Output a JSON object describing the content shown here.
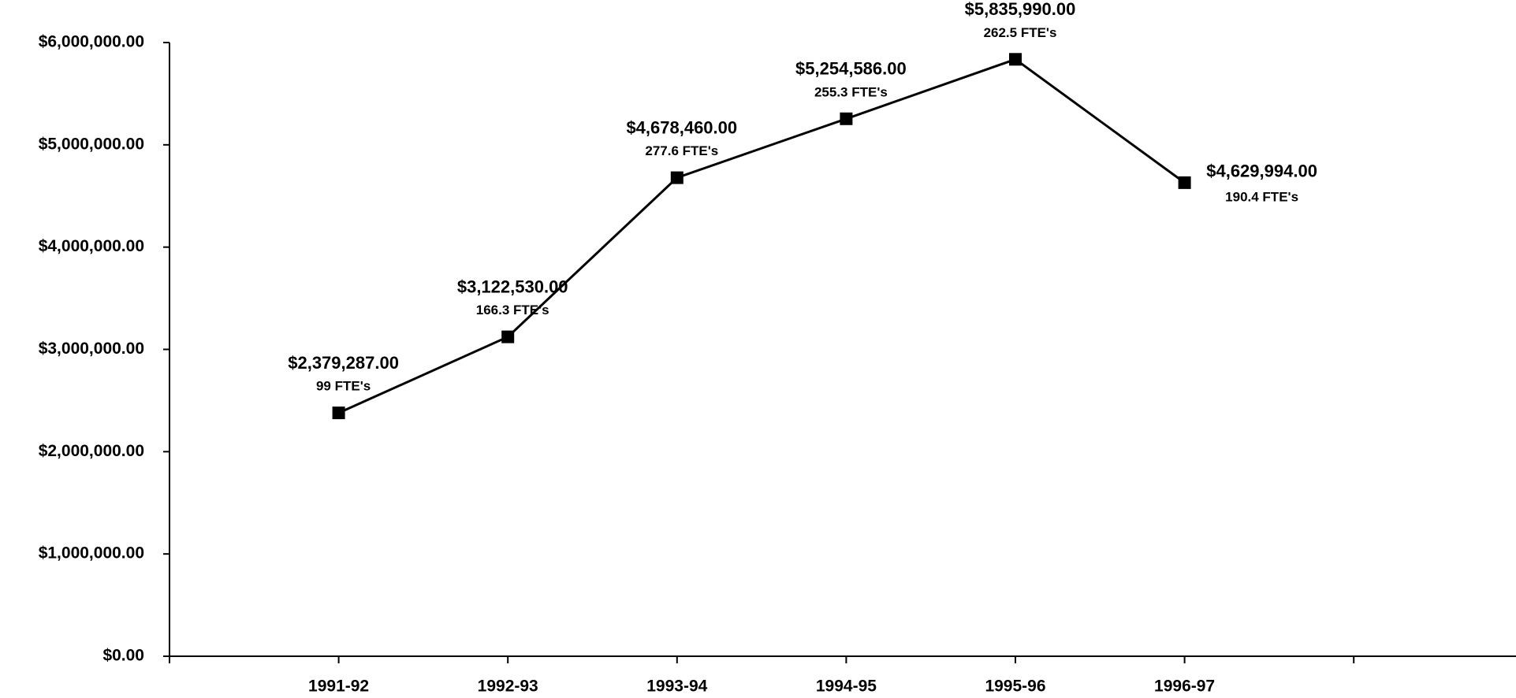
{
  "chart_data": {
    "type": "line",
    "categories": [
      "1991-92",
      "1992-93",
      "1993-94",
      "1994-95",
      "1995-96",
      "1996-97"
    ],
    "series": [
      {
        "color": "#000000",
        "values": [
          2379287,
          3122530,
          4678460,
          5254586,
          5835990,
          4629994
        ],
        "value_labels": [
          "$2,379,287.00",
          "$3,122,530.00",
          "$4,678,460.00",
          "$5,254,586.00",
          "$5,835,990.00",
          "$4,629,994.00"
        ]
      }
    ],
    "annotations": [
      "99 FTE's",
      "166.3 FTE's",
      "277.6 FTE's",
      "255.3 FTE's",
      "262.5 FTE's",
      "190.4 FTE's"
    ],
    "ylim": [
      0,
      6000000
    ],
    "yticks": [
      {
        "value": 0,
        "label": "$0.00"
      },
      {
        "value": 1000000,
        "label": "$1,000,000.00"
      },
      {
        "value": 2000000,
        "label": "$2,000,000.00"
      },
      {
        "value": 3000000,
        "label": "$3,000,000.00"
      },
      {
        "value": 4000000,
        "label": "$4,000,000.00"
      },
      {
        "value": 5000000,
        "label": "$5,000,000.00"
      },
      {
        "value": 6000000,
        "label": "$6,000,000.00"
      }
    ],
    "grid": false
  }
}
